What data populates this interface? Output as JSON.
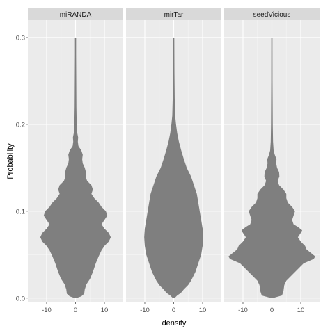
{
  "chart_data": {
    "type": "violin",
    "xlabel": "density",
    "ylabel": "Probability",
    "x_ticks": [
      -10,
      0,
      10
    ],
    "x_tick_labels": [
      "-10",
      "0",
      "10"
    ],
    "xlim": [
      -16.5,
      16.5
    ],
    "y_ticks": [
      0.0,
      0.1,
      0.2,
      0.3
    ],
    "y_tick_labels": [
      "0.0",
      "0.1",
      "0.2",
      "0.3"
    ],
    "ylim": [
      -0.005,
      0.32
    ],
    "grid": true,
    "fill_color": "#7f7f7f",
    "panels": [
      {
        "facet": "miRANDA",
        "profile": [
          [
            0.0,
            0.3
          ],
          [
            0.002,
            2.0
          ],
          [
            0.005,
            3.0
          ],
          [
            0.01,
            3.2
          ],
          [
            0.016,
            3.8
          ],
          [
            0.022,
            5.0
          ],
          [
            0.03,
            6.0
          ],
          [
            0.04,
            7.0
          ],
          [
            0.048,
            8.0
          ],
          [
            0.055,
            9.0
          ],
          [
            0.06,
            10.0
          ],
          [
            0.065,
            11.5
          ],
          [
            0.07,
            12.2
          ],
          [
            0.075,
            11.5
          ],
          [
            0.08,
            10.0
          ],
          [
            0.085,
            9.0
          ],
          [
            0.09,
            10.0
          ],
          [
            0.095,
            11.0
          ],
          [
            0.1,
            10.5
          ],
          [
            0.105,
            9.0
          ],
          [
            0.11,
            8.0
          ],
          [
            0.115,
            6.5
          ],
          [
            0.12,
            5.5
          ],
          [
            0.125,
            6.0
          ],
          [
            0.13,
            5.5
          ],
          [
            0.135,
            4.0
          ],
          [
            0.14,
            3.5
          ],
          [
            0.145,
            3.6
          ],
          [
            0.15,
            3.2
          ],
          [
            0.155,
            2.5
          ],
          [
            0.16,
            2.3
          ],
          [
            0.165,
            2.5
          ],
          [
            0.17,
            2.0
          ],
          [
            0.175,
            1.0
          ],
          [
            0.18,
            0.8
          ],
          [
            0.185,
            0.9
          ],
          [
            0.19,
            0.6
          ],
          [
            0.2,
            0.4
          ],
          [
            0.22,
            0.3
          ],
          [
            0.25,
            0.25
          ],
          [
            0.28,
            0.2
          ],
          [
            0.3,
            0.2
          ]
        ]
      },
      {
        "facet": "mirTar",
        "profile": [
          [
            0.0,
            0.3
          ],
          [
            0.003,
            1.2
          ],
          [
            0.006,
            2.5
          ],
          [
            0.01,
            3.5
          ],
          [
            0.015,
            5.0
          ],
          [
            0.02,
            6.0
          ],
          [
            0.03,
            7.5
          ],
          [
            0.04,
            8.5
          ],
          [
            0.05,
            9.5
          ],
          [
            0.06,
            10.0
          ],
          [
            0.07,
            10.2
          ],
          [
            0.08,
            10.0
          ],
          [
            0.09,
            9.5
          ],
          [
            0.1,
            9.0
          ],
          [
            0.11,
            8.5
          ],
          [
            0.12,
            8.0
          ],
          [
            0.13,
            7.0
          ],
          [
            0.14,
            6.0
          ],
          [
            0.15,
            4.5
          ],
          [
            0.16,
            3.5
          ],
          [
            0.17,
            2.6
          ],
          [
            0.18,
            1.8
          ],
          [
            0.19,
            1.2
          ],
          [
            0.2,
            0.8
          ],
          [
            0.21,
            0.5
          ],
          [
            0.23,
            0.35
          ],
          [
            0.26,
            0.25
          ],
          [
            0.3,
            0.2
          ]
        ]
      },
      {
        "facet": "seedVicious",
        "profile": [
          [
            0.0,
            0.3
          ],
          [
            0.003,
            3.5
          ],
          [
            0.008,
            4.0
          ],
          [
            0.015,
            4.3
          ],
          [
            0.02,
            5.0
          ],
          [
            0.025,
            6.5
          ],
          [
            0.03,
            8.0
          ],
          [
            0.035,
            9.5
          ],
          [
            0.04,
            11.0
          ],
          [
            0.045,
            14.5
          ],
          [
            0.048,
            15.0
          ],
          [
            0.052,
            13.5
          ],
          [
            0.056,
            12.0
          ],
          [
            0.06,
            11.5
          ],
          [
            0.065,
            10.0
          ],
          [
            0.07,
            9.0
          ],
          [
            0.075,
            10.0
          ],
          [
            0.078,
            10.5
          ],
          [
            0.082,
            9.0
          ],
          [
            0.085,
            7.5
          ],
          [
            0.09,
            7.0
          ],
          [
            0.095,
            7.5
          ],
          [
            0.1,
            8.0
          ],
          [
            0.105,
            7.0
          ],
          [
            0.11,
            5.5
          ],
          [
            0.115,
            5.0
          ],
          [
            0.12,
            5.0
          ],
          [
            0.125,
            4.0
          ],
          [
            0.13,
            2.5
          ],
          [
            0.135,
            2.0
          ],
          [
            0.14,
            2.6
          ],
          [
            0.145,
            2.5
          ],
          [
            0.15,
            1.8
          ],
          [
            0.155,
            1.5
          ],
          [
            0.16,
            1.6
          ],
          [
            0.165,
            1.0
          ],
          [
            0.17,
            0.6
          ],
          [
            0.18,
            0.4
          ],
          [
            0.2,
            0.3
          ],
          [
            0.25,
            0.22
          ],
          [
            0.3,
            0.2
          ]
        ]
      }
    ]
  }
}
